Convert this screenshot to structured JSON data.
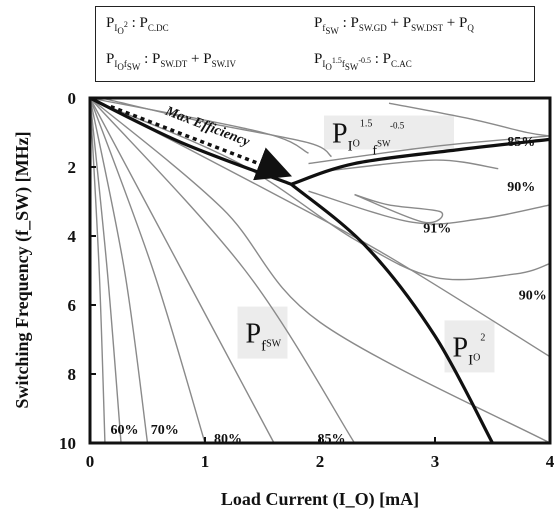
{
  "legend": {
    "row1_left": {
      "p": "P",
      "s1": "I",
      "s2": "O",
      "sup": "2",
      "rhs": ": P",
      "rhs_sub": "C.DC"
    },
    "row1_right": {
      "p": "P",
      "s1": "f",
      "s2": "SW",
      "rhs1": ": P",
      "rhs1_sub": "SW.GD",
      "plus1": " + P",
      "rhs2_sub": "SW.DST",
      "plus2": " + P",
      "rhs3_sub": "Q"
    },
    "row2_left": {
      "p": "P",
      "s1": "I",
      "s2": "O",
      "s3": "f",
      "s4": "SW",
      "rhs1": ": P",
      "rhs1_sub": "SW.DT",
      "plus1": " + P",
      "rhs2_sub": "SW.IV"
    },
    "row2_right": {
      "p": "P",
      "s1": "I",
      "s2": "O",
      "sup1": "1.5",
      "s3": "f",
      "s4": "SW",
      "sup2": "-0.5",
      "rhs": ": P",
      "rhs_sub": "C.AC"
    }
  },
  "chart_data": {
    "type": "contour",
    "xlabel": "Load Current (I_O) [mA]",
    "ylabel": "Switching Frequency (f_SW) [MHz]",
    "xlim": [
      0,
      4
    ],
    "ylim": [
      0,
      10
    ],
    "y_inverted": true,
    "x_ticks": [
      "0",
      "1",
      "2",
      "3",
      "4"
    ],
    "y_ticks": [
      "0",
      "2",
      "4",
      "6",
      "8",
      "10"
    ],
    "efficiency_labels": [
      {
        "text": "60%",
        "x": 0.3,
        "y": 9.6
      },
      {
        "text": "70%",
        "x": 0.65,
        "y": 9.6
      },
      {
        "text": "80%",
        "x": 1.2,
        "y": 9.85
      },
      {
        "text": "85%",
        "x": 2.1,
        "y": 9.85
      },
      {
        "text": "85%",
        "x": 3.75,
        "y": 1.25
      },
      {
        "text": "90%",
        "x": 3.75,
        "y": 2.55
      },
      {
        "text": "91%",
        "x": 3.02,
        "y": 3.75
      },
      {
        "text": "90%",
        "x": 3.85,
        "y": 5.7
      }
    ],
    "contours": [
      {
        "name": "60%",
        "points": [
          [
            0,
            0
          ],
          [
            0.08,
            5
          ],
          [
            0.13,
            10
          ]
        ]
      },
      {
        "name": "",
        "points": [
          [
            0,
            0
          ],
          [
            0.15,
            5
          ],
          [
            0.27,
            10
          ]
        ]
      },
      {
        "name": "70%",
        "points": [
          [
            0,
            0
          ],
          [
            0.3,
            5
          ],
          [
            0.5,
            10
          ]
        ]
      },
      {
        "name": "",
        "points": [
          [
            0,
            0
          ],
          [
            0.55,
            5
          ],
          [
            1.0,
            10
          ]
        ]
      },
      {
        "name": "80%",
        "points": [
          [
            0,
            0
          ],
          [
            0.8,
            5
          ],
          [
            1.6,
            10
          ]
        ]
      },
      {
        "name": "",
        "points": [
          [
            0,
            0
          ],
          [
            1.35,
            5
          ],
          [
            2.3,
            10
          ]
        ]
      },
      {
        "name": "85%",
        "points": [
          [
            0,
            0
          ],
          [
            1.15,
            3.2
          ],
          [
            2.0,
            6.5
          ],
          [
            4.0,
            10
          ]
        ]
      },
      {
        "name": "",
        "points": [
          [
            0,
            0
          ],
          [
            1.5,
            2.6
          ],
          [
            2.6,
            4.6
          ],
          [
            4.0,
            7.5
          ]
        ]
      },
      {
        "name": "90%",
        "points": [
          [
            0.05,
            0.1
          ],
          [
            1.3,
            1.9
          ],
          [
            2.3,
            4.1
          ],
          [
            3.0,
            5.2
          ],
          [
            3.7,
            5.1
          ],
          [
            4.0,
            4.8
          ]
        ]
      },
      {
        "name": "91%",
        "points": [
          [
            2.3,
            2.8
          ],
          [
            2.9,
            3.6
          ],
          [
            3.05,
            3.3
          ],
          [
            2.6,
            3.1
          ],
          [
            2.3,
            2.8
          ]
        ]
      },
      {
        "name": "",
        "points": [
          [
            0,
            0
          ],
          [
            1.5,
            1.0
          ],
          [
            1.9,
            1.6
          ]
        ]
      },
      {
        "name": "",
        "points": [
          [
            0.1,
            0
          ],
          [
            1.0,
            0.7
          ],
          [
            1.9,
            1.3
          ],
          [
            2.1,
            1.7
          ]
        ]
      },
      {
        "name": "",
        "points": [
          [
            1.9,
            1.9
          ],
          [
            3.0,
            1.4
          ],
          [
            4.0,
            1.1
          ]
        ]
      },
      {
        "name": "90%",
        "points": [
          [
            2.1,
            2.1
          ],
          [
            3.0,
            1.8
          ],
          [
            3.55,
            2.05
          ]
        ]
      },
      {
        "name": "",
        "points": [
          [
            2.6,
            0.15
          ],
          [
            3.3,
            0.6
          ],
          [
            3.8,
            1.0
          ],
          [
            4.0,
            1.1
          ]
        ]
      },
      {
        "name": "",
        "points": [
          [
            1.9,
            2.7
          ],
          [
            2.8,
            3.6
          ],
          [
            3.4,
            3.5
          ],
          [
            4.0,
            3.1
          ]
        ]
      }
    ],
    "boundaries": [
      {
        "points": [
          [
            0,
            0
          ],
          [
            0.8,
            1.3
          ],
          [
            1.75,
            2.5
          ]
        ]
      },
      {
        "points": [
          [
            1.75,
            2.5
          ],
          [
            2.3,
            1.9
          ],
          [
            3.2,
            1.5
          ],
          [
            4.0,
            1.2
          ]
        ]
      },
      {
        "points": [
          [
            1.75,
            2.5
          ],
          [
            2.4,
            4.3
          ],
          [
            3.0,
            6.9
          ],
          [
            3.5,
            10
          ]
        ]
      }
    ],
    "max_efficiency_arrow": {
      "label": "Max Efficiency",
      "from": [
        0.18,
        0.25
      ],
      "to": [
        1.7,
        2.2
      ]
    },
    "regions": [
      {
        "name": "P_fSW",
        "label_main": "P",
        "label_sub": "f",
        "label_sub2": "SW",
        "x": 1.5,
        "y": 6.8
      },
      {
        "name": "P_IO2",
        "label_main": "P",
        "label_sub": "I",
        "label_sub2": "O",
        "label_sup": "2",
        "x": 3.3,
        "y": 7.2
      },
      {
        "name": "P_IO1.5fSW-0.5",
        "label_main": "P",
        "label_sub": "I",
        "label_sub2": "O",
        "label_sup": "1.5",
        "label_sub3": "f",
        "label_sub4": "SW",
        "label_sup2": "-0.5",
        "x": 2.6,
        "y": 1.0
      }
    ]
  }
}
